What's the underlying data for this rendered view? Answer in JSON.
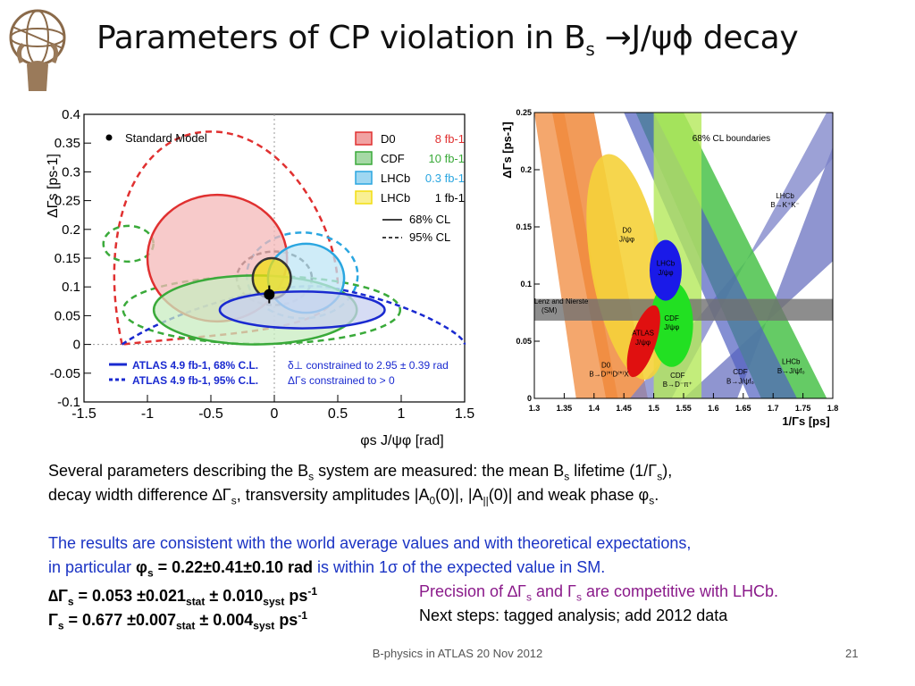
{
  "slide": {
    "title_main": "Parameters of CP violation in B",
    "title_sub": "s",
    "title_tail": " →J/ψϕ decay",
    "footer": "B-physics in ATLAS  20 Nov 2012",
    "page_number": "21"
  },
  "text": {
    "p1_a": "Several parameters describing the B",
    "p1_b": " system are measured: the mean B",
    "p1_c": " lifetime (1/Γ",
    "p1_d": "),",
    "p2_a": "decay width difference ∆Γ",
    "p2_b": ", transversity amplitudes |A",
    "p2_c": "(0)|, |A",
    "p2_d": "(0)| and weak phase φ",
    "p2_e": ".",
    "sub_s": "s",
    "sub_0": "0",
    "sub_par": "||",
    "p3": "The results are consistent with the world average values and with theoretical expectations,",
    "p4_a": "in particular ",
    "p4_phi": "φ",
    "p4_val": " = 0.22±0.41±0.10 rad",
    "p4_b": " is within 1σ of the expected value in SM.",
    "dg_label": "∆Γ",
    "dg_val": " = 0.053 ±0.021",
    "dg_syst": " ± 0.010",
    "stat": "stat",
    "syst": "syst",
    "ps": " ps",
    "ps_exp": "-1",
    "dg_note_a": "Precision of ∆Γ",
    "dg_note_b": " and Γ",
    "dg_note_c": " are competitive with LHCb.",
    "g_label": "Γ",
    "g_val": "  = 0.677 ±0.007",
    "g_syst": " ± 0.004",
    "g_note": "Next steps: tagged analysis; add 2012 data"
  },
  "chart_data": [
    {
      "type": "scatter",
      "title": "",
      "xlabel": "φs J/ψφ [rad]",
      "ylabel": "ΔΓs [ps-1]",
      "xlim": [
        -1.5,
        1.5
      ],
      "ylim": [
        -0.1,
        0.4
      ],
      "x_ticks": [
        "-1.5",
        "-1",
        "-0.5",
        "0",
        "0.5",
        "1",
        "1.5"
      ],
      "y_ticks": [
        "-0.1",
        "-0.05",
        "0",
        "0.05",
        "0.1",
        "0.15",
        "0.2",
        "0.25",
        "0.3",
        "0.35",
        "0.4"
      ],
      "legend": [
        {
          "name": "D0",
          "lumi": "8 fb-1",
          "color": "#e03030"
        },
        {
          "name": "CDF",
          "lumi": "10 fb-1",
          "color": "#3aaa3a"
        },
        {
          "name": "LHCb",
          "lumi": "0.3 fb-1",
          "color": "#2aa6e0"
        },
        {
          "name": "LHCb",
          "lumi": "1 fb-1",
          "color": "#f2dd10"
        }
      ],
      "legend_cl": [
        "68% CL",
        "95% CL"
      ],
      "standard_model_label": "Standard Model",
      "standard_model_point": {
        "x": -0.04,
        "y": 0.087
      },
      "atlas_labels": [
        "ATLAS 4.9 fb-1, 68% C.L.",
        "ATLAS 4.9 fb-1, 95% C.L."
      ],
      "annotations": [
        "δ⊥ constrained to 2.95 ± 0.39 rad",
        "ΔΓs constrained to > 0"
      ],
      "grid": false,
      "legend_placement": "top-right",
      "contours": [
        {
          "name": "D0 68%",
          "color": "#e03030",
          "fill": "#f4b8b8",
          "center": [
            -0.45,
            0.15
          ],
          "rx": 0.55,
          "ry": 0.11
        },
        {
          "name": "CDF 68%",
          "color": "#3aaa3a",
          "fill": "#c8ecc0",
          "center": [
            -0.15,
            0.06
          ],
          "rx": 0.8,
          "ry": 0.06
        },
        {
          "name": "LHCb 0.3 fb-1 68%",
          "color": "#2aa6e0",
          "fill": "#bfe6f5",
          "center": [
            0.25,
            0.115
          ],
          "rx": 0.3,
          "ry": 0.06
        },
        {
          "name": "LHCb 1 fb-1 68%",
          "color": "#333333",
          "fill": "#f2dd10",
          "center": [
            -0.02,
            0.115
          ],
          "rx": 0.15,
          "ry": 0.035
        },
        {
          "name": "ATLAS 68%",
          "color": "#1a2ad0",
          "fill": "#c8d0f0",
          "center": [
            0.22,
            0.06
          ],
          "rx": 0.65,
          "ry": 0.032
        }
      ]
    },
    {
      "type": "area",
      "title": "",
      "xlabel": "1/Γs [ps]",
      "ylabel": "ΔΓs [ps-1]",
      "xlim": [
        1.3,
        1.8
      ],
      "ylim": [
        0,
        0.25
      ],
      "x_ticks": [
        "1.3",
        "1.35",
        "1.4",
        "1.45",
        "1.5",
        "1.55",
        "1.6",
        "1.65",
        "1.7",
        "1.75",
        "1.8"
      ],
      "y_ticks": [
        "0",
        "0.05",
        "0.1",
        "0.15",
        "0.2",
        "0.25"
      ],
      "header": "68% CL boundaries",
      "band_labels": [
        {
          "text": "D0",
          "x": 1.455,
          "y": 0.145
        },
        {
          "text": "J/ψφ",
          "x": 1.455,
          "y": 0.137
        },
        {
          "text": "LHCb",
          "x": 1.52,
          "y": 0.116
        },
        {
          "text": "J/ψφ",
          "x": 1.52,
          "y": 0.108
        },
        {
          "text": "Lenz and Nierste",
          "x": 1.345,
          "y": 0.083
        },
        {
          "text": "(SM)",
          "x": 1.325,
          "y": 0.075
        },
        {
          "text": "CDF",
          "x": 1.53,
          "y": 0.068
        },
        {
          "text": "J/ψφ",
          "x": 1.53,
          "y": 0.06
        },
        {
          "text": "ATLAS",
          "x": 1.482,
          "y": 0.055
        },
        {
          "text": "J/ψφ",
          "x": 1.482,
          "y": 0.047
        },
        {
          "text": "LHCb",
          "x": 1.72,
          "y": 0.175
        },
        {
          "text": "B→K⁺K⁻",
          "x": 1.72,
          "y": 0.167
        },
        {
          "text": "D0",
          "x": 1.42,
          "y": 0.027
        },
        {
          "text": "B→D⁽*⁾D⁽*⁾X",
          "x": 1.425,
          "y": 0.019
        },
        {
          "text": "CDF",
          "x": 1.54,
          "y": 0.018
        },
        {
          "text": "B→D⁻π⁺",
          "x": 1.54,
          "y": 0.01
        },
        {
          "text": "CDF",
          "x": 1.645,
          "y": 0.021
        },
        {
          "text": "B→J/ψf₀",
          "x": 1.645,
          "y": 0.013
        },
        {
          "text": "LHCb",
          "x": 1.73,
          "y": 0.03
        },
        {
          "text": "B→J/ψf₀",
          "x": 1.73,
          "y": 0.022
        }
      ],
      "regions": [
        {
          "name": "D0 B→Ds(*)Ds(*)X",
          "color": "#f08a3c"
        },
        {
          "name": "D0 J/ψφ",
          "color": "#f5d23a"
        },
        {
          "name": "CDF B→D-π+",
          "color": "#b4e85a"
        },
        {
          "name": "CDF B→J/ψf0",
          "color": "#4ac24a"
        },
        {
          "name": "LHCb B→K+K-",
          "color": "#7b82c8"
        },
        {
          "name": "LHCb B→J/ψf0",
          "color": "#5060c0"
        },
        {
          "name": "LHCb J/ψφ",
          "color": "#1a1ae8"
        },
        {
          "name": "CDF J/ψφ",
          "color": "#22e022"
        },
        {
          "name": "ATLAS J/ψφ",
          "color": "#e01010"
        },
        {
          "name": "Lenz and Nierste (SM)",
          "color": "#707070"
        }
      ],
      "sm_band": [
        0.068,
        0.087
      ]
    }
  ]
}
